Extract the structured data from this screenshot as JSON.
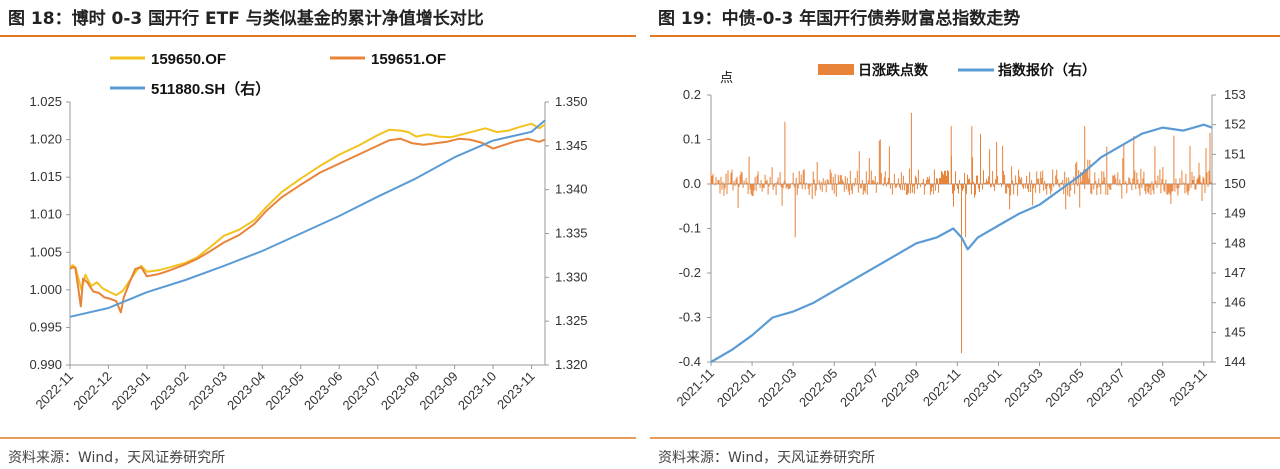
{
  "left": {
    "title": "图 18：博时 0-3 国开行 ETF 与类似基金的累计净值增长对比",
    "source": "资料来源：Wind，天风证券研究所"
  },
  "right": {
    "title": "图 19：中债-0-3 年国开行债券财富总指数走势",
    "source": "资料来源：Wind，天风证券研究所"
  },
  "colors": {
    "accent_rule": "#e07b24",
    "series_159650": "#f2c21f",
    "series_159651": "#e8833a",
    "series_511880": "#5b9bd5",
    "bars": "#e8833a",
    "index_line": "#5b9bd5",
    "axis": "#9a9a9a"
  },
  "chart_data": [
    {
      "type": "line",
      "title": "",
      "legend": [
        "159650.OF",
        "159651.OF",
        "511880.SH（右）"
      ],
      "legend_placement": "top",
      "grid": false,
      "y_left": {
        "lim": [
          0.99,
          1.025
        ],
        "ticks": [
          "1.025",
          "1.020",
          "1.015",
          "1.010",
          "1.005",
          "1.000",
          "0.995",
          "0.990"
        ]
      },
      "y_right": {
        "lim": [
          1.32,
          1.35
        ],
        "ticks": [
          "1.350",
          "1.345",
          "1.340",
          "1.335",
          "1.330",
          "1.325",
          "1.320"
        ]
      },
      "x_labels": [
        "2022-11",
        "2022-12",
        "2023-01",
        "2023-02",
        "2023-03",
        "2023-04",
        "2023-05",
        "2023-06",
        "2023-07",
        "2023-08",
        "2023-09",
        "2023-10",
        "2023-11"
      ],
      "series": [
        {
          "name": "159650.OF",
          "axis": "left",
          "points": [
            [
              0,
              1.003
            ],
            [
              0.07,
              1.0033
            ],
            [
              0.14,
              1.003
            ],
            [
              0.22,
              1.0015
            ],
            [
              0.3,
              1.0
            ],
            [
              0.4,
              1.002
            ],
            [
              0.55,
              1.0005
            ],
            [
              0.7,
              1.001
            ],
            [
              0.85,
              1.0002
            ],
            [
              1.0,
              0.9998
            ],
            [
              1.2,
              0.9993
            ],
            [
              1.38,
              0.9999
            ],
            [
              1.55,
              1.0012
            ],
            [
              1.72,
              1.0025
            ],
            [
              1.85,
              1.0032
            ],
            [
              2.0,
              1.0024
            ],
            [
              2.3,
              1.0026
            ],
            [
              2.6,
              1.003
            ],
            [
              3.0,
              1.0036
            ],
            [
              3.3,
              1.0043
            ],
            [
              3.6,
              1.0055
            ],
            [
              4.0,
              1.0072
            ],
            [
              4.4,
              1.008
            ],
            [
              4.8,
              1.0093
            ],
            [
              5.1,
              1.011
            ],
            [
              5.5,
              1.013
            ],
            [
              6.0,
              1.0148
            ],
            [
              6.5,
              1.0165
            ],
            [
              7.0,
              1.018
            ],
            [
              7.5,
              1.0192
            ],
            [
              8.0,
              1.0206
            ],
            [
              8.3,
              1.0213
            ],
            [
              8.6,
              1.0212
            ],
            [
              8.8,
              1.021
            ],
            [
              9.0,
              1.0204
            ],
            [
              9.3,
              1.0207
            ],
            [
              9.6,
              1.0204
            ],
            [
              9.9,
              1.0203
            ],
            [
              10.2,
              1.0207
            ],
            [
              10.5,
              1.0211
            ],
            [
              10.8,
              1.0215
            ],
            [
              11.1,
              1.021
            ],
            [
              11.4,
              1.0212
            ],
            [
              11.7,
              1.0217
            ],
            [
              12.0,
              1.0221
            ],
            [
              12.2,
              1.0215
            ],
            [
              12.35,
              1.022
            ]
          ]
        },
        {
          "name": "159651.OF",
          "axis": "left",
          "points": [
            [
              0,
              1.0028
            ],
            [
              0.07,
              1.003
            ],
            [
              0.14,
              1.0029
            ],
            [
              0.22,
              1.0
            ],
            [
              0.28,
              0.9978
            ],
            [
              0.34,
              1.0015
            ],
            [
              0.45,
              1.001
            ],
            [
              0.6,
              0.9998
            ],
            [
              0.75,
              0.9996
            ],
            [
              0.9,
              0.999
            ],
            [
              1.05,
              0.9988
            ],
            [
              1.2,
              0.9985
            ],
            [
              1.32,
              0.997
            ],
            [
              1.4,
              0.999
            ],
            [
              1.55,
              1.001
            ],
            [
              1.7,
              1.0028
            ],
            [
              1.85,
              1.003
            ],
            [
              2.0,
              1.0018
            ],
            [
              2.3,
              1.0021
            ],
            [
              2.6,
              1.0026
            ],
            [
              3.0,
              1.0034
            ],
            [
              3.3,
              1.0041
            ],
            [
              3.6,
              1.005
            ],
            [
              4.0,
              1.0063
            ],
            [
              4.4,
              1.0073
            ],
            [
              4.8,
              1.0088
            ],
            [
              5.1,
              1.0105
            ],
            [
              5.5,
              1.0123
            ],
            [
              6.0,
              1.014
            ],
            [
              6.5,
              1.0156
            ],
            [
              7.0,
              1.0168
            ],
            [
              7.5,
              1.018
            ],
            [
              8.0,
              1.0192
            ],
            [
              8.3,
              1.0199
            ],
            [
              8.6,
              1.0201
            ],
            [
              8.9,
              1.0195
            ],
            [
              9.2,
              1.0193
            ],
            [
              9.5,
              1.0195
            ],
            [
              9.8,
              1.0197
            ],
            [
              10.1,
              1.0201
            ],
            [
              10.4,
              1.02
            ],
            [
              10.7,
              1.0196
            ],
            [
              11.0,
              1.0188
            ],
            [
              11.3,
              1.0193
            ],
            [
              11.6,
              1.0198
            ],
            [
              11.9,
              1.0201
            ],
            [
              12.2,
              1.0197
            ],
            [
              12.35,
              1.02
            ]
          ]
        },
        {
          "name": "511880.SH（右）",
          "axis": "right",
          "points": [
            [
              0,
              1.3255
            ],
            [
              1,
              1.3265
            ],
            [
              2,
              1.3283
            ],
            [
              3,
              1.3297
            ],
            [
              4,
              1.3313
            ],
            [
              5,
              1.333
            ],
            [
              6,
              1.335
            ],
            [
              7,
              1.337
            ],
            [
              8,
              1.3392
            ],
            [
              9,
              1.3413
            ],
            [
              10,
              1.3437
            ],
            [
              11,
              1.3456
            ],
            [
              12,
              1.3466
            ],
            [
              12.35,
              1.3479
            ]
          ]
        }
      ]
    },
    {
      "type": "bar+line",
      "title": "",
      "legend": [
        "日涨跌点数",
        "指数报价（右）"
      ],
      "legend_placement": "top",
      "grid": false,
      "y_left": {
        "unit": "点",
        "lim": [
          -0.4,
          0.2
        ],
        "ticks": [
          "0.2",
          "0.1",
          "0.0",
          "-0.1",
          "-0.2",
          "-0.3",
          "-0.4"
        ]
      },
      "y_right": {
        "lim": [
          144,
          153
        ],
        "ticks": [
          "153",
          "152",
          "151",
          "150",
          "149",
          "148",
          "147",
          "146",
          "145",
          "144"
        ]
      },
      "x_labels": [
        "2021-11",
        "2022-01",
        "2022-03",
        "2022-05",
        "2022-07",
        "2022-09",
        "2022-11",
        "2023-01",
        "2023-03",
        "2023-05",
        "2023-07",
        "2023-09",
        "2023-11"
      ],
      "bar_series": {
        "name": "日涨跌点数",
        "bars_per_period": 500,
        "typical_range": [
          -0.12,
          0.15
        ],
        "notable": [
          {
            "t": 6.1,
            "value": -0.38
          },
          {
            "t": 4.88,
            "value": 0.16
          },
          {
            "t": 1.8,
            "value": 0.14
          },
          {
            "t": 5.85,
            "value": 0.13
          },
          {
            "t": 6.35,
            "value": 0.13
          },
          {
            "t": 9.1,
            "value": 0.13
          },
          {
            "t": 2.05,
            "value": -0.12
          },
          {
            "t": 6.2,
            "value": -0.12
          }
        ]
      },
      "line_series": {
        "name": "指数报价（右）",
        "points": [
          [
            0,
            144.0
          ],
          [
            0.5,
            144.4
          ],
          [
            1.0,
            144.9
          ],
          [
            1.5,
            145.5
          ],
          [
            2.0,
            145.7
          ],
          [
            2.5,
            146.0
          ],
          [
            3.0,
            146.4
          ],
          [
            3.5,
            146.8
          ],
          [
            4.0,
            147.2
          ],
          [
            4.5,
            147.6
          ],
          [
            5.0,
            148.0
          ],
          [
            5.5,
            148.2
          ],
          [
            5.9,
            148.5
          ],
          [
            6.1,
            148.2
          ],
          [
            6.25,
            147.8
          ],
          [
            6.5,
            148.2
          ],
          [
            7.0,
            148.6
          ],
          [
            7.5,
            149.0
          ],
          [
            8.0,
            149.3
          ],
          [
            8.5,
            149.8
          ],
          [
            9.0,
            150.3
          ],
          [
            9.5,
            150.9
          ],
          [
            10.0,
            151.3
          ],
          [
            10.5,
            151.7
          ],
          [
            11.0,
            151.9
          ],
          [
            11.5,
            151.8
          ],
          [
            12.0,
            152.0
          ],
          [
            12.2,
            151.9
          ]
        ]
      }
    }
  ]
}
